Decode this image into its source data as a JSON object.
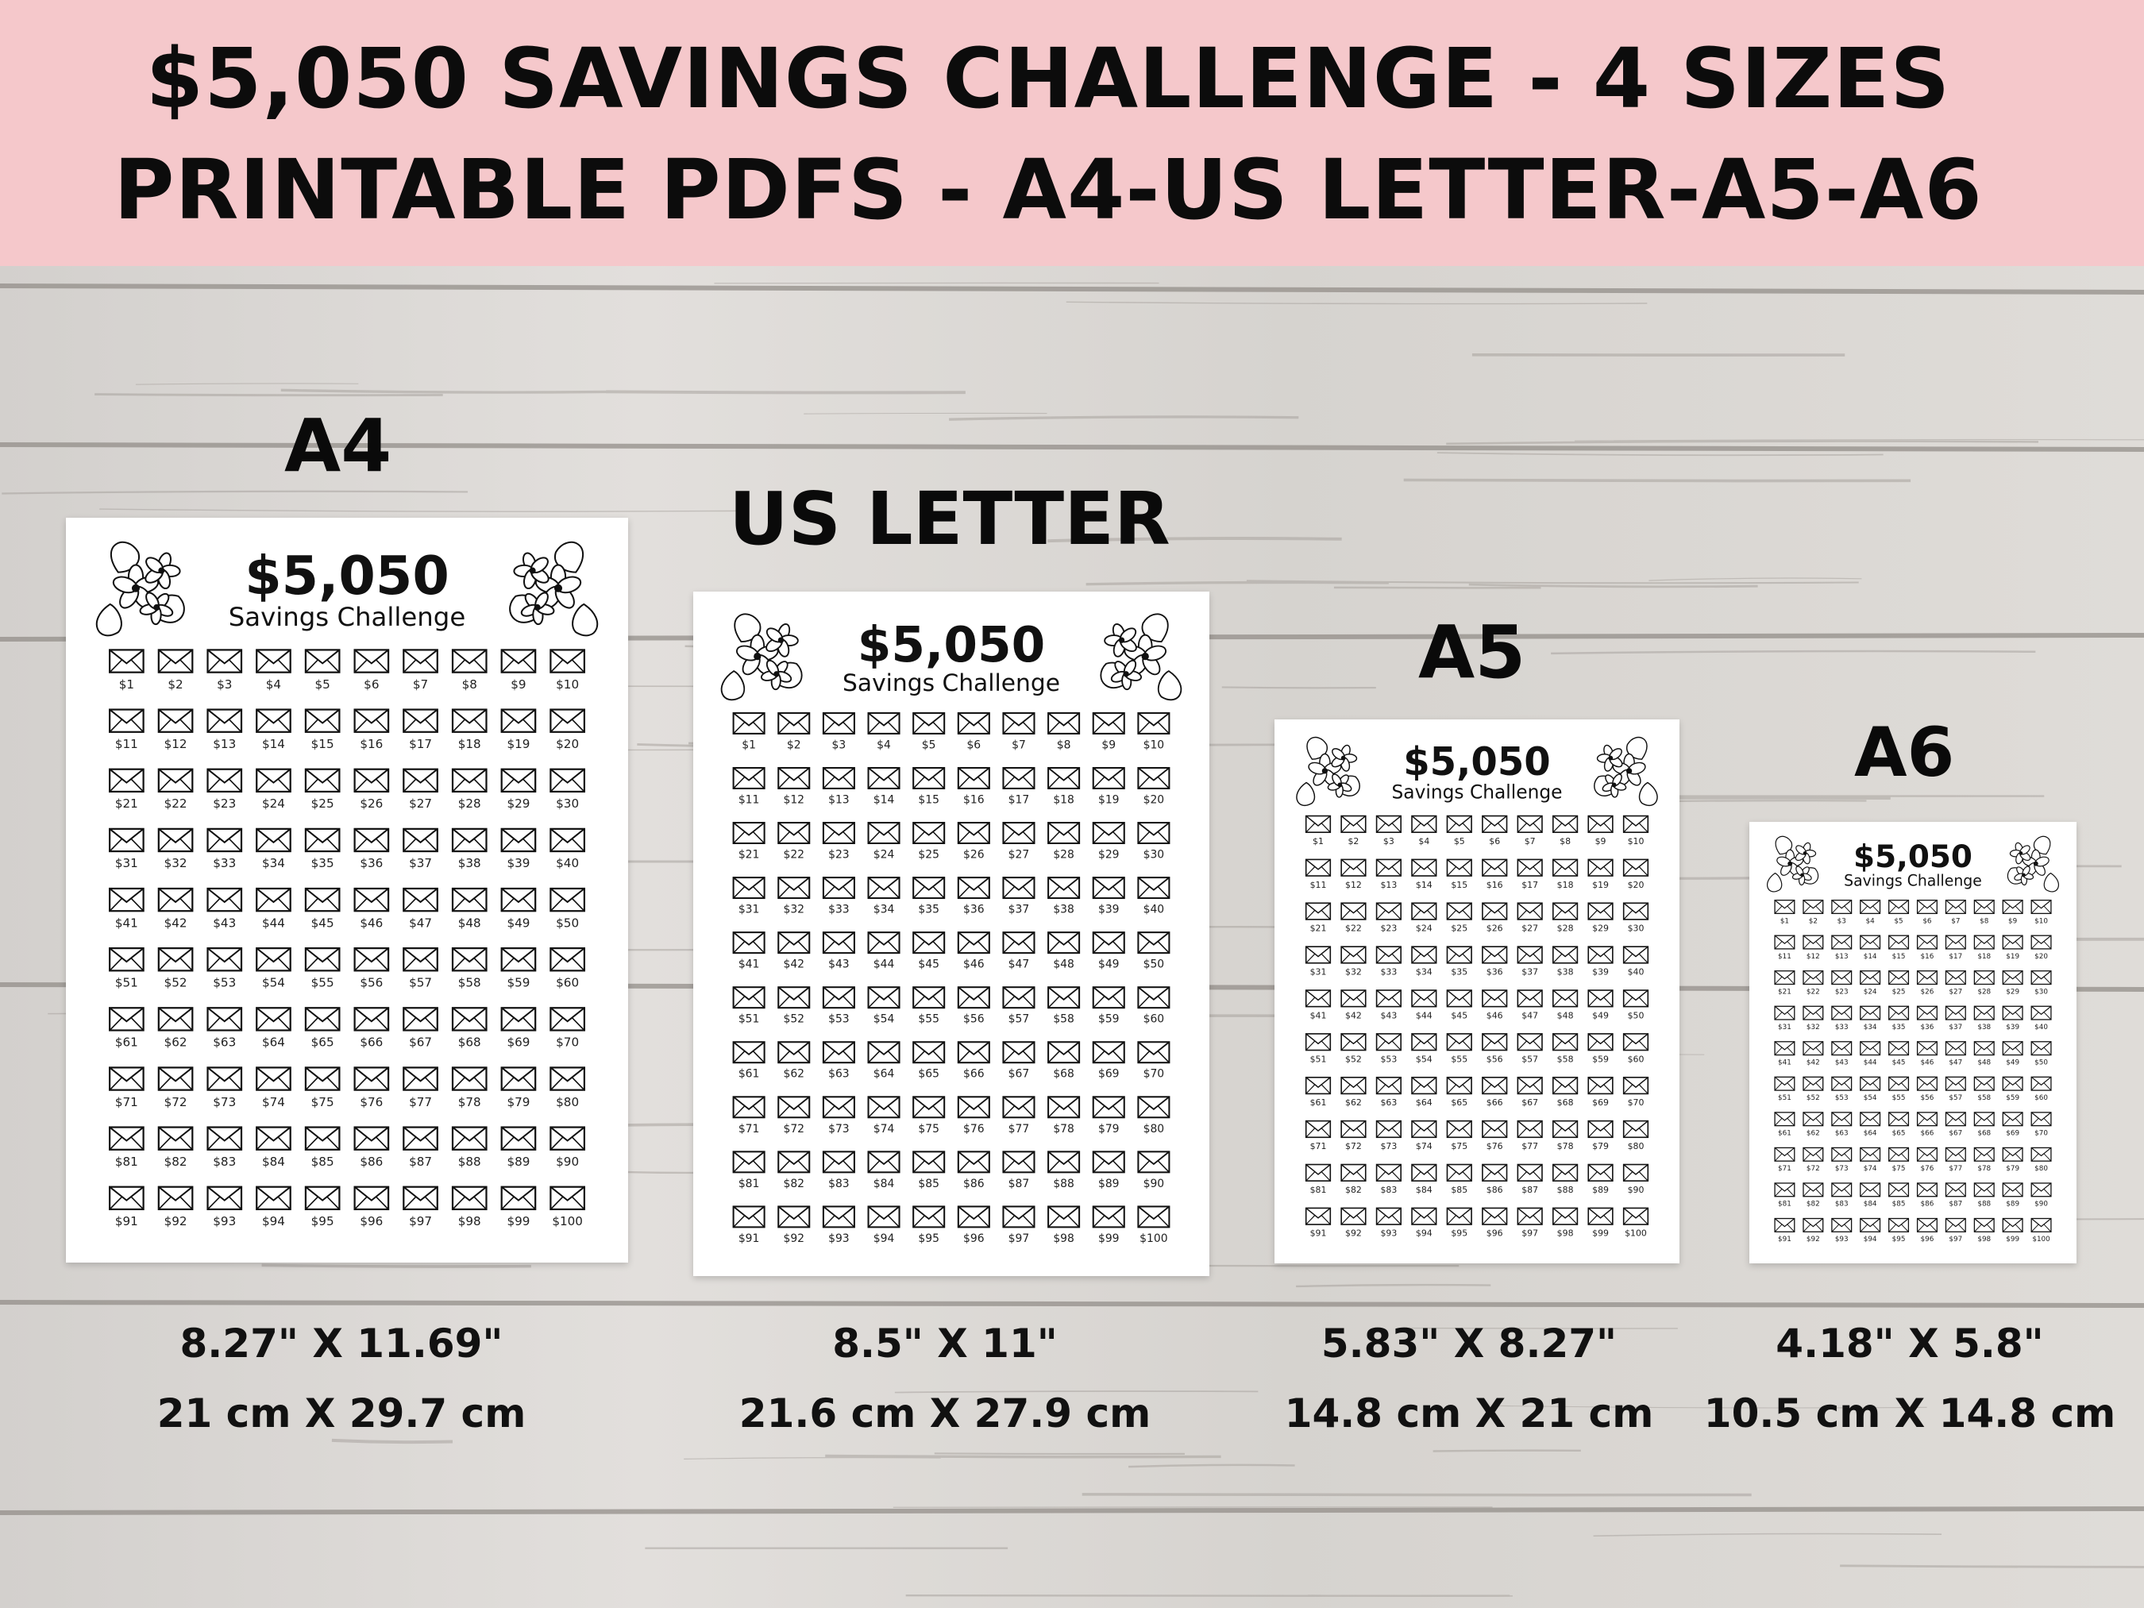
{
  "banner": {
    "line1": "$5,050 SAVINGS CHALLENGE - 4 SIZES",
    "line2": "PRINTABLE PDFS - A4-US LETTER-A5-A6"
  },
  "sheet": {
    "amount": "$5,050",
    "subtitle": "Savings Challenge",
    "envelope_icon": "envelope-icon",
    "flower_icon": "flower-icon",
    "envelope_count": 100,
    "columns": 10
  },
  "sizes": [
    {
      "label": "A4",
      "dim_in": "8.27\" X 11.69\"",
      "dim_cm": "21 cm X 29.7 cm"
    },
    {
      "label": "US LETTER",
      "dim_in": "8.5\" X 11\"",
      "dim_cm": "21.6 cm X 27.9 cm"
    },
    {
      "label": "A5",
      "dim_in": "5.83\" X 8.27\"",
      "dim_cm": "14.8 cm X 21 cm"
    },
    {
      "label": "A6",
      "dim_in": "4.18\" X 5.8\"",
      "dim_cm": "10.5 cm X 14.8 cm"
    }
  ],
  "colors": {
    "banner": "#f5c8cb",
    "wood": "#d8d5d2",
    "text": "#111111"
  }
}
